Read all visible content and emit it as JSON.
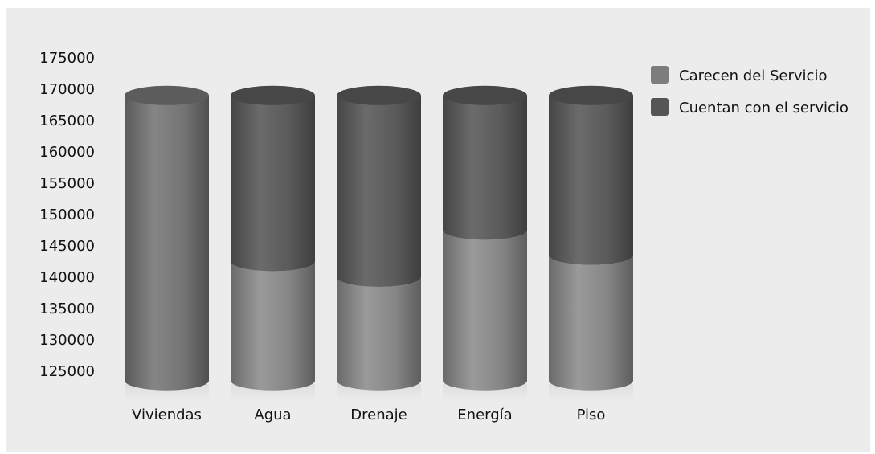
{
  "chart_data": {
    "type": "bar",
    "style": "3d-cylinder-stacked",
    "categories": [
      "Viviendas",
      "Agua",
      "Drenaje",
      "Energía",
      "Piso"
    ],
    "series": [
      {
        "name": "Cuentan con el servicio",
        "color": "#555555",
        "values": [
          169000,
          142500,
          140000,
          147500,
          143500
        ]
      },
      {
        "name": "Carecen del Servicio",
        "color": "#7d7d7d",
        "values": [
          0,
          26500,
          29000,
          21500,
          25500
        ]
      }
    ],
    "ylim": [
      123500,
      175000
    ],
    "yticks": [
      "175000",
      "170000",
      "165000",
      "160000",
      "155000",
      "150000",
      "145000",
      "140000",
      "135000",
      "130000",
      "125000"
    ],
    "legend_position": "right",
    "legend": [
      "Carecen del Servicio",
      "Cuentan con el servicio"
    ],
    "grid": false,
    "colors": {
      "background": "#ececec",
      "lower": "#7d7d7d",
      "upper": "#555555"
    }
  }
}
